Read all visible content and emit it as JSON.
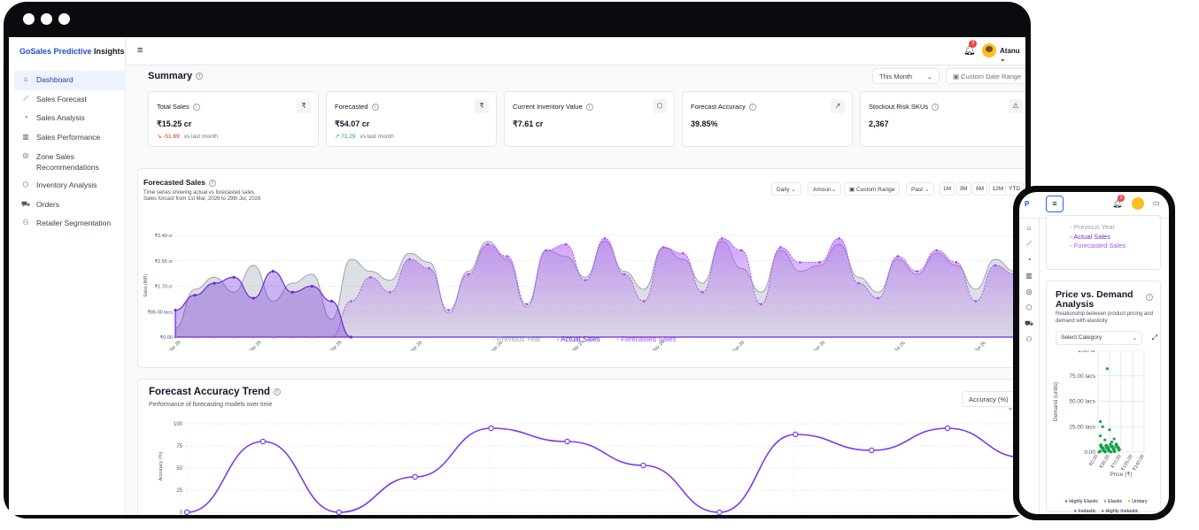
{
  "app": {
    "brand_part1": "GoSales Predictive",
    "brand_part2": " Insights",
    "menu_icon": "hamburger-icon",
    "notifications": "3",
    "user": "Atanu"
  },
  "sidebar": {
    "items": [
      {
        "label": "Dashboard",
        "icon": "home-icon",
        "active": true
      },
      {
        "label": "Sales Forecast",
        "icon": "line-chart-icon"
      },
      {
        "label": "Sales Analysis",
        "icon": "pie-chart-icon"
      },
      {
        "label": "Sales Performance",
        "icon": "bar-chart-icon"
      },
      {
        "label": "Zone Sales Recommendations",
        "icon": "target-icon"
      },
      {
        "label": "Inventory Analysis",
        "icon": "box-icon"
      },
      {
        "label": "Orders",
        "icon": "cart-icon"
      },
      {
        "label": "Retailer Segmentation",
        "icon": "users-icon"
      }
    ]
  },
  "summary": {
    "title": "Summary",
    "period": "This Month",
    "date_range": "Custom Date Range",
    "cards": [
      {
        "label": "Total Sales",
        "value": "₹15.25 cr",
        "change": "-51.69",
        "change_note": "vs last month",
        "trend": "down",
        "icon": "rupee-icon"
      },
      {
        "label": "Forecasted",
        "value": "₹54.07 cr",
        "change": "71.29",
        "change_note": "vs last month",
        "trend": "up",
        "icon": "rupee-icon"
      },
      {
        "label": "Current Inventory Value",
        "value": "₹7.61 cr",
        "icon": "package-icon"
      },
      {
        "label": "Forecast Accuracy",
        "value": "39.85%",
        "icon": "trend-up-icon"
      },
      {
        "label": "Stockout Risk SKUs",
        "value": "2,367",
        "icon": "alert-icon"
      }
    ]
  },
  "forecast": {
    "title": "Forecasted Sales",
    "subtitle1": "Time series showing actual vs forecasted sales.",
    "subtitle2": "Sales forcast from 1st Mar, 2026 to 29th Jul, 2026",
    "granularity": "Daily",
    "measure": "Amoun",
    "custom_range": "Custom Range",
    "past": "Past",
    "ranges": [
      "1M",
      "3M",
      "6M",
      "12M",
      "YTD"
    ],
    "legend": [
      "Previous Year",
      "Actual Sales",
      "Forecasted Sales"
    ]
  },
  "accuracy": {
    "title": "Forecast Accuracy Trend",
    "subtitle": "Performance of forecasting models over time",
    "metric": "Accuracy (%)"
  },
  "phone": {
    "logo": "P",
    "legend": [
      "Previous Year",
      "Actual Sales",
      "Forecasted Sales"
    ],
    "price_title": "Price vs. Demand Analysis",
    "price_sub": "Relationship between product pricing and demand with elasticity",
    "category": "Select Category",
    "legend2": [
      "Highly Elastic",
      "Elastic",
      "Unitary",
      "Inelastic",
      "Highly Inelastic"
    ]
  },
  "chart_data": [
    {
      "type": "area",
      "title": "Forecasted Sales",
      "ylabel": "Sales (INR)",
      "y_ticks": [
        "₹0.00",
        "₹85.00 lacs",
        "₹1.70 cr",
        "₹2.55 cr",
        "₹3.40 cr"
      ],
      "x_ticks": [
        "Mar 26",
        "Mar 26",
        "Mar 26",
        "Apr 26",
        "Apr 26",
        "May 26",
        "May 26",
        "Jun 26",
        "Jun 26",
        "Jul 26",
        "Jul 26"
      ],
      "ylim": [
        0,
        3.4
      ],
      "series": [
        {
          "name": "Previous Year",
          "values": [
            0.3,
            1.6,
            2.0,
            1.5,
            2.4,
            1.2,
            1.8,
            2.1,
            0.6,
            2.6,
            2.2,
            1.9,
            2.8,
            2.5,
            0.8,
            2.2,
            3.2,
            2.6,
            1.0,
            2.9,
            2.7,
            2.0,
            3.2,
            2.2,
            1.6,
            3.0,
            2.6,
            1.8,
            3.2,
            2.3,
            1.5,
            2.9,
            2.2,
            2.4,
            3.1,
            2.0,
            1.5,
            2.6,
            2.1,
            2.8,
            2.4,
            1.6,
            2.6,
            2.2
          ]
        },
        {
          "name": "Actual Sales",
          "values": [
            0.9,
            1.4,
            1.8,
            2.0,
            1.3,
            2.2,
            1.5,
            1.7,
            1.2,
            0,
            0,
            0,
            0,
            0,
            0,
            0,
            0,
            0,
            0,
            0,
            0,
            0,
            0,
            0,
            0,
            0,
            0,
            0,
            0,
            0,
            0,
            0,
            0,
            0,
            0,
            0,
            0,
            0,
            0,
            0,
            0,
            0,
            0,
            0
          ]
        },
        {
          "name": "Forecasted Sales",
          "values": [
            0,
            0,
            0,
            0,
            0,
            0,
            0,
            0,
            0,
            1.2,
            2.0,
            1.5,
            2.6,
            2.3,
            0.9,
            2.1,
            3.1,
            2.7,
            1.1,
            2.9,
            3.1,
            1.9,
            3.3,
            2.1,
            1.2,
            3.0,
            2.8,
            1.5,
            3.3,
            2.9,
            1.1,
            3.0,
            2.5,
            2.5,
            3.3,
            1.8,
            1.3,
            2.7,
            2.2,
            2.9,
            2.5,
            1.2,
            2.4,
            2.1
          ]
        }
      ]
    },
    {
      "type": "line",
      "title": "Forecast Accuracy Trend",
      "ylabel": "Accuracy (%)",
      "ylim": [
        0,
        100
      ],
      "y_ticks": [
        "0",
        "25",
        "50",
        "75",
        "100"
      ],
      "series": [
        {
          "name": "Accuracy (%)",
          "values": [
            0,
            80,
            0,
            40,
            95,
            80,
            53,
            0,
            88,
            70,
            95,
            62
          ]
        }
      ]
    },
    {
      "type": "scatter",
      "title": "Price vs. Demand Analysis",
      "xlabel": "Price (₹)",
      "ylabel": "Demand (units)",
      "y_ticks": [
        "0.00",
        "25.00 lacs",
        "50.00 lacs",
        "75.00 lacs",
        "1.00 cr"
      ],
      "x_ticks": [
        "₹0.00",
        "₹35.00",
        "₹70.00",
        "₹105.00",
        "₹140.00"
      ]
    }
  ]
}
